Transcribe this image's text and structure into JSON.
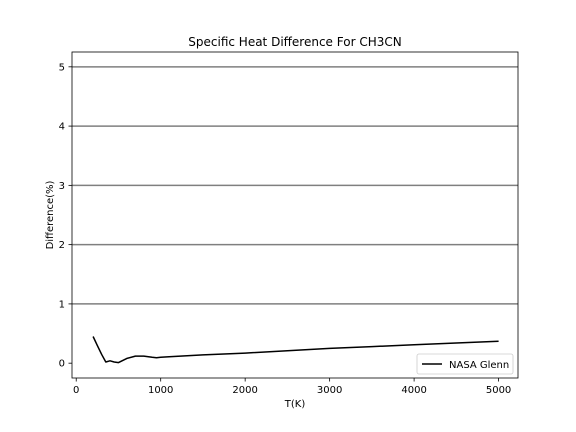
{
  "chart_data": {
    "type": "line",
    "title": "Specific Heat Difference For CH3CN",
    "xlabel": "T(K)",
    "ylabel": "Difference(%)",
    "xlim": [
      -50,
      5230
    ],
    "ylim": [
      -0.25,
      5.25
    ],
    "xticks": [
      0,
      1000,
      2000,
      3000,
      4000,
      5000
    ],
    "yticks": [
      0,
      1,
      2,
      3,
      4,
      5
    ],
    "hlines": [
      1,
      2,
      3,
      4,
      5
    ],
    "grid": false,
    "legend_position": "lower right",
    "series": [
      {
        "name": "NASA Glenn",
        "color": "#000000",
        "x": [
          200,
          250,
          300,
          350,
          400,
          450,
          500,
          600,
          700,
          800,
          900,
          950,
          1000,
          1100,
          1500,
          2000,
          2500,
          3000,
          3500,
          4000,
          4500,
          5000
        ],
        "y": [
          0.45,
          0.3,
          0.15,
          0.02,
          0.04,
          0.02,
          0.01,
          0.08,
          0.12,
          0.12,
          0.1,
          0.09,
          0.1,
          0.11,
          0.14,
          0.17,
          0.21,
          0.25,
          0.28,
          0.31,
          0.34,
          0.37
        ]
      }
    ]
  }
}
